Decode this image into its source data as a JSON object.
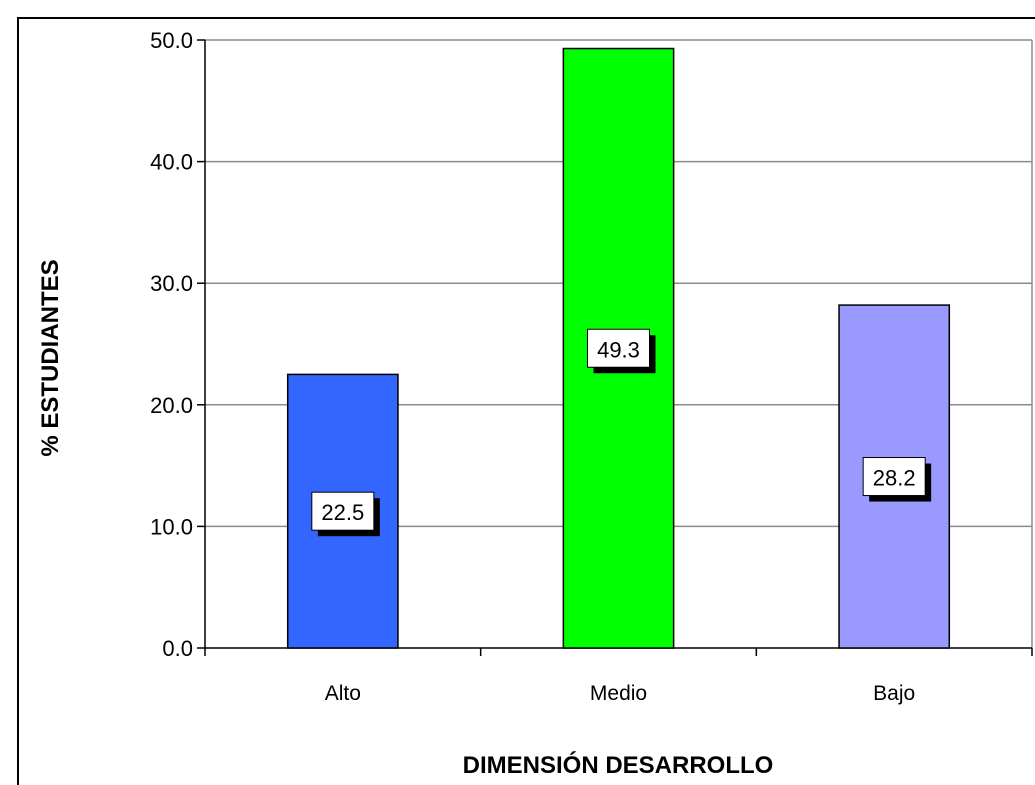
{
  "chart_data": {
    "type": "bar",
    "categories": [
      "Alto",
      "Medio",
      "Bajo"
    ],
    "values": [
      22.5,
      49.3,
      28.2
    ],
    "data_labels": [
      "22.5",
      "49.3",
      "28.2"
    ],
    "bar_colors": [
      "#3366ff",
      "#00ff00",
      "#9999ff"
    ],
    "xlabel": "DIMENSIÓN DESARROLLO",
    "ylabel": "% ESTUDIANTES",
    "ylim": [
      0,
      50
    ],
    "yticks": [
      0,
      10,
      20,
      30,
      40,
      50
    ],
    "ytick_labels": [
      "0.0",
      "10.0",
      "20.0",
      "30.0",
      "40.0",
      "50.0"
    ],
    "grid": true,
    "legend": "none"
  }
}
